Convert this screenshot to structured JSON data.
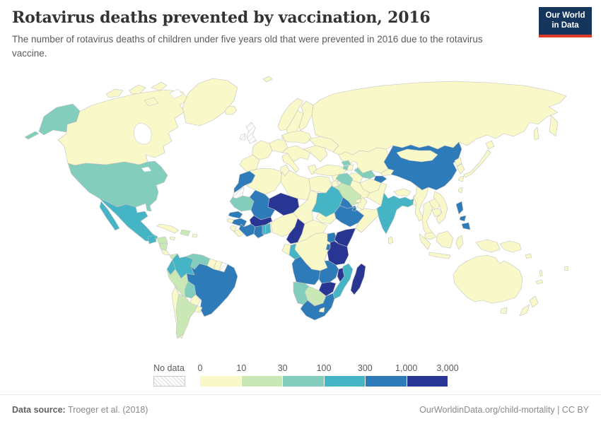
{
  "header": {
    "title": "Rotavirus deaths prevented by vaccination, 2016",
    "subtitle": "The number of rotavirus deaths of children under five years old that were prevented in 2016 due to the rotavirus vaccine.",
    "logo": {
      "line1": "Our World",
      "line2": "in Data"
    }
  },
  "brand": {
    "logo_bg": "#15355c",
    "logo_accent": "#dc3a2a"
  },
  "legend": {
    "no_data_label": "No data",
    "thresholds": [
      "0",
      "10",
      "30",
      "100",
      "300",
      "1,000",
      "3,000"
    ],
    "colors": [
      "#f8f8c8",
      "#c9e8b6",
      "#82cdbb",
      "#45b4c5",
      "#2d7bb8",
      "#283593"
    ]
  },
  "footer": {
    "source_label": "Data source:",
    "source_value": " Troeger et al. (2018)",
    "link": "OurWorldinData.org/child-mortality",
    "separator": " | ",
    "license": "CC BY"
  },
  "map": {
    "ocean": "#ffffff",
    "border": "#c2c2c2",
    "no_data_pattern": "hatch",
    "palette": [
      "hatch",
      "#f8f8c8",
      "#c9e8b6",
      "#82cdbb",
      "#45b4c5",
      "#2d7bb8",
      "#283593"
    ],
    "bucket_labels": [
      "No data",
      "0-10",
      "10-30",
      "30-100",
      "100-300",
      "300-1,000",
      "1,000-3,000"
    ],
    "countries": {
      "canada": 1,
      "greenland": 1,
      "iceland": 1,
      "svalbard": 1,
      "usa": 3,
      "mexico": 4,
      "guatemala": 4,
      "honduras": 2,
      "nicaragua": 2,
      "costa-rica": 1,
      "panama": 2,
      "cuba": 1,
      "jamaica": 1,
      "hispaniola": 2,
      "puerto-rico": 1,
      "colombia": 4,
      "venezuela": 3,
      "guyana": 1,
      "suriname": 1,
      "french-guiana": 0,
      "ecuador": 4,
      "peru": 2,
      "brazil": 5,
      "bolivia": 3,
      "paraguay": 1,
      "chile": 1,
      "argentina": 2,
      "uruguay": 1,
      "uk": 0,
      "ireland": 0,
      "norway": 1,
      "sweden": 1,
      "finland": 1,
      "denmark": 1,
      "iberia": 1,
      "france": 1,
      "germany": 1,
      "italy": 1,
      "central-europe": 1,
      "greece": 1,
      "poland-baltics": 1,
      "se-europe": 1,
      "ukraine": 1,
      "russia": 1,
      "kazakhstan": 1,
      "uzbekistan": 3,
      "turkmenistan": 1,
      "kyrgyzstan": 1,
      "tajikistan": 5,
      "afghanistan": 1,
      "pakistan": 1,
      "iran": 1,
      "turkey": 1,
      "georgia": 3,
      "armenia": 3,
      "azerbaijan": 1,
      "syria": 1,
      "iraq": 3,
      "jordan-israel": 1,
      "saudi-arabia": 2,
      "yemen": 5,
      "oman": 1,
      "uae": 1,
      "morocco": 5,
      "western-sahara": 0,
      "algeria": 1,
      "tunisia": 1,
      "libya": 1,
      "egypt": 1,
      "mauritania": 3,
      "mali": 5,
      "niger": 6,
      "chad": 1,
      "sudan": 4,
      "south-sudan": 1,
      "eritrea": 5,
      "ethiopia": 5,
      "djibouti": 5,
      "somalia": 1,
      "senegal": 5,
      "guinea-bissau": 1,
      "guinea": 5,
      "sierra-leone": 1,
      "liberia": 1,
      "cote-divoire": 5,
      "ghana": 5,
      "togo": 4,
      "benin": 4,
      "burkina-faso": 6,
      "nigeria": 1,
      "cameroon": 6,
      "central-african-republic": 1,
      "gabon": 1,
      "congo": 4,
      "drc": 1,
      "uganda": 5,
      "kenya": 6,
      "rwanda-burundi": 5,
      "tanzania": 6,
      "angola": 5,
      "zambia": 5,
      "malawi": 6,
      "mozambique": 4,
      "zimbabwe": 6,
      "botswana": 2,
      "namibia": 3,
      "south-africa": 5,
      "lesotho": 1,
      "madagascar": 6,
      "china": 5,
      "mongolia": 1,
      "india": 4,
      "nepal": 1,
      "bhutan": 1,
      "bangladesh": 1,
      "sri-lanka": 1,
      "myanmar": 1,
      "thailand": 1,
      "laos": 1,
      "cambodia": 1,
      "vietnam": 1,
      "malaysia": 1,
      "indonesia": 1,
      "papua-new-guinea": 1,
      "philippines": 5,
      "taiwan": 1,
      "japan": 1,
      "south-korea": 1,
      "north-korea": 1,
      "australia": 1,
      "new-zealand": 1,
      "solomon-islands": 1,
      "vanuatu": 1,
      "fiji": 1,
      "new-caledonia": 1
    }
  },
  "chart_data": {
    "type": "heatmap",
    "subtype": "choropleth-world-map",
    "title": "Rotavirus deaths prevented by vaccination, 2016",
    "subtitle": "The number of rotavirus deaths of children under five years old that were prevented in 2016 due to the rotavirus vaccine.",
    "legend_position": "bottom",
    "scale": "log-binned",
    "bin_edges": [
      0,
      10,
      30,
      100,
      300,
      1000,
      3000
    ],
    "bin_labels": [
      "0-10",
      "10-30",
      "30-100",
      "100-300",
      "300-1,000",
      "1,000-3,000"
    ],
    "bin_colors": [
      "#f8f8c8",
      "#c9e8b6",
      "#82cdbb",
      "#45b4c5",
      "#2d7bb8",
      "#283593"
    ],
    "no_data": {
      "label": "No data",
      "style": "white-diagonal-hatch"
    },
    "values_by_country": {
      "Canada": "0-10",
      "United States": "30-100",
      "Mexico": "100-300",
      "Guatemala": "100-300",
      "Honduras": "10-30",
      "Nicaragua": "10-30",
      "Costa Rica": "0-10",
      "Panama": "10-30",
      "Cuba": "0-10",
      "Haiti": "10-30",
      "Dominican Republic": "10-30",
      "Colombia": "100-300",
      "Venezuela": "30-100",
      "Guyana": "0-10",
      "Suriname": "0-10",
      "French Guiana": "No data",
      "Ecuador": "100-300",
      "Peru": "10-30",
      "Brazil": "300-1,000",
      "Bolivia": "30-100",
      "Paraguay": "0-10",
      "Chile": "0-10",
      "Argentina": "10-30",
      "Uruguay": "0-10",
      "Greenland": "0-10",
      "Iceland": "0-10",
      "United Kingdom": "No data",
      "Ireland": "No data",
      "Norway": "0-10",
      "Sweden": "0-10",
      "Finland": "0-10",
      "Germany": "0-10",
      "France": "0-10",
      "Spain": "0-10",
      "Italy": "0-10",
      "Greece": "0-10",
      "Poland": "0-10",
      "Ukraine": "0-10",
      "Russia": "0-10",
      "Turkey": "0-10",
      "Georgia": "30-100",
      "Armenia": "30-100",
      "Azerbaijan": "0-10",
      "Iraq": "30-100",
      "Syria": "0-10",
      "Saudi Arabia": "10-30",
      "Yemen": "300-1,000",
      "Oman": "0-10",
      "Iran": "0-10",
      "Kazakhstan": "0-10",
      "Uzbekistan": "30-100",
      "Turkmenistan": "0-10",
      "Kyrgyzstan": "0-10",
      "Tajikistan": "300-1,000",
      "Afghanistan": "0-10",
      "Pakistan": "0-10",
      "India": "100-300",
      "Nepal": "0-10",
      "Bangladesh": "0-10",
      "Sri Lanka": "0-10",
      "China": "300-1,000",
      "Mongolia": "0-10",
      "Myanmar": "0-10",
      "Thailand": "0-10",
      "Laos": "0-10",
      "Cambodia": "0-10",
      "Vietnam": "0-10",
      "Malaysia": "0-10",
      "Indonesia": "0-10",
      "Philippines": "300-1,000",
      "Japan": "0-10",
      "South Korea": "0-10",
      "North Korea": "0-10",
      "Papua New Guinea": "0-10",
      "Australia": "0-10",
      "New Zealand": "0-10",
      "Morocco": "300-1,000",
      "Western Sahara": "No data",
      "Algeria": "0-10",
      "Tunisia": "0-10",
      "Libya": "0-10",
      "Egypt": "0-10",
      "Mauritania": "30-100",
      "Mali": "300-1,000",
      "Niger": "1,000-3,000",
      "Chad": "0-10",
      "Sudan": "100-300",
      "South Sudan": "0-10",
      "Eritrea": "300-1,000",
      "Ethiopia": "300-1,000",
      "Djibouti": "300-1,000",
      "Somalia": "0-10",
      "Senegal": "300-1,000",
      "Guinea": "300-1,000",
      "Guinea-Bissau": "0-10",
      "Sierra Leone": "0-10",
      "Liberia": "0-10",
      "Cote d'Ivoire": "300-1,000",
      "Ghana": "300-1,000",
      "Togo": "100-300",
      "Benin": "100-300",
      "Burkina Faso": "1,000-3,000",
      "Nigeria": "0-10",
      "Cameroon": "1,000-3,000",
      "Central African Republic": "0-10",
      "Gabon": "0-10",
      "Congo": "100-300",
      "DR Congo": "0-10",
      "Uganda": "300-1,000",
      "Kenya": "1,000-3,000",
      "Rwanda": "300-1,000",
      "Burundi": "300-1,000",
      "Tanzania": "1,000-3,000",
      "Angola": "300-1,000",
      "Zambia": "300-1,000",
      "Malawi": "1,000-3,000",
      "Mozambique": "100-300",
      "Zimbabwe": "1,000-3,000",
      "Botswana": "10-30",
      "Namibia": "30-100",
      "South Africa": "300-1,000",
      "Lesotho": "0-10",
      "Madagascar": "1,000-3,000"
    }
  }
}
